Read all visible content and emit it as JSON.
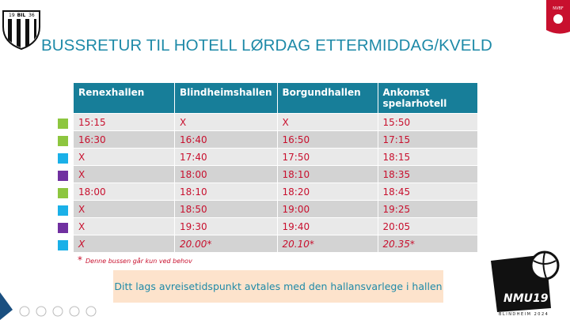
{
  "logos": {
    "club_left": "19",
    "club_mid": "BIL",
    "club_right": "36",
    "federation": "NVBF",
    "event": "NMU19",
    "event_sub": "BLINDHEIM 2024"
  },
  "header": {
    "title": "BUSSRETUR TIL HOTELL LØRDAG ETTERMIDDAG/KVELD"
  },
  "table": {
    "columns": [
      "Renexhallen",
      "Blindheimshallen",
      "Borgundhallen",
      "Ankomst spelarhotell"
    ],
    "rows": [
      [
        "15:15",
        "X",
        "X",
        "15:50"
      ],
      [
        "16:30",
        "16:40",
        "16:50",
        "17:15"
      ],
      [
        "X",
        "17:40",
        "17:50",
        "18:15"
      ],
      [
        "X",
        "18:00",
        "18:10",
        "18:35"
      ],
      [
        "18:00",
        "18:10",
        "18:20",
        "18:45"
      ],
      [
        "X",
        "18:50",
        "19:00",
        "19:25"
      ],
      [
        "X",
        "19:30",
        "19:40",
        "20:05"
      ],
      [
        "X",
        "20.00*",
        "20.10*",
        "20.35*"
      ]
    ],
    "markers": [
      "#8dc63f",
      "#8dc63f",
      "#1ab0e8",
      "#7030a0",
      "#8dc63f",
      "#1ab0e8",
      "#7030a0",
      "#1ab0e8"
    ]
  },
  "footnote": {
    "mark": "*",
    "text": "Denne bussen går kun ved behov"
  },
  "info": "Ditt lags avreisetidspunkt avtales med den hallansvarlege i hallen"
}
